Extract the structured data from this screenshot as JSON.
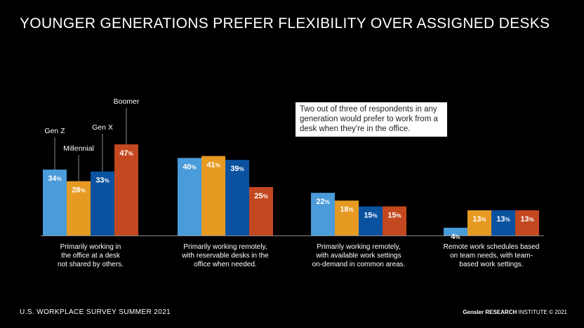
{
  "title": "YOUNGER GENERATIONS PREFER FLEXIBILITY OVER ASSIGNED DESKS",
  "callout": "Two out of three of respondents in any generation would prefer to work from a desk when they're in the office.",
  "footer": {
    "survey": "U.S. WORKPLACE SURVEY SUMMER 2021",
    "brand": "Gensler",
    "research": "RESEARCH",
    "institute": "INSTITUTE",
    "copyright": "© 2021"
  },
  "colors": {
    "Gen Z": "#4a9bd9",
    "Millennial": "#e69a22",
    "Gen X": "#0a52a0",
    "Boomer": "#c4481f"
  },
  "chart_data": {
    "type": "bar",
    "categories": [
      [
        "Primarily working in",
        "the office at a desk",
        "not shared by others."
      ],
      [
        "Primarily working remotely,",
        "with reservable desks in the",
        "office when needed."
      ],
      [
        "Primarily working remotely,",
        "with available work settings",
        "on-demand in common areas."
      ],
      [
        "Remote work schedules based",
        "on team needs, with team-",
        "based work settings."
      ]
    ],
    "series": [
      {
        "name": "Gen Z",
        "values": [
          34,
          40,
          22,
          4
        ]
      },
      {
        "name": "Millennial",
        "values": [
          28,
          41,
          18,
          13
        ]
      },
      {
        "name": "Gen X",
        "values": [
          33,
          39,
          15,
          13
        ]
      },
      {
        "name": "Boomer",
        "values": [
          47,
          25,
          15,
          13
        ]
      }
    ],
    "value_suffix": "%",
    "ylim": [
      0,
      47
    ],
    "legend": "labels above first group"
  }
}
